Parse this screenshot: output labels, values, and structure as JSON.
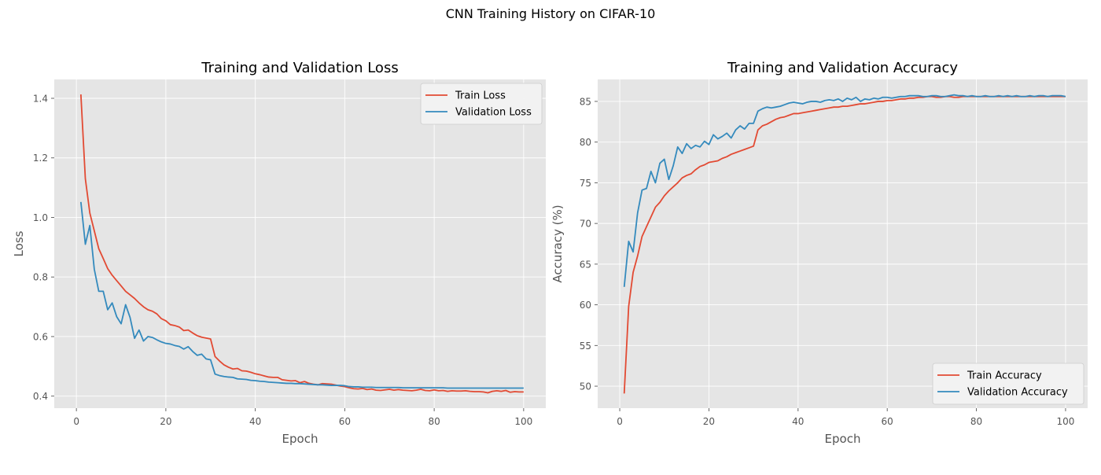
{
  "suptitle": "CNN Training History on CIFAR-10",
  "colors": {
    "train": "#E24A33",
    "validation": "#348ABD",
    "plot_background": "#E5E5E5",
    "grid": "#FFFFFF",
    "tick_text": "#555555"
  },
  "chart_data": [
    {
      "type": "line",
      "title": "Training and Validation Loss",
      "xlabel": "Epoch",
      "ylabel": "Loss",
      "xlim": [
        -4.95,
        104.95
      ],
      "ylim": [
        0.3596,
        1.4634
      ],
      "xticks": [
        0,
        20,
        40,
        60,
        80,
        100
      ],
      "yticks": [
        0.4,
        0.6,
        0.8,
        1.0,
        1.2,
        1.4
      ],
      "ytick_format": 1,
      "grid": true,
      "legend_position": "top-right",
      "series": [
        {
          "name": "Train Loss",
          "color_key": "train",
          "x": [
            1,
            2,
            3,
            4,
            5,
            6,
            7,
            8,
            9,
            10,
            11,
            12,
            13,
            14,
            15,
            16,
            17,
            18,
            19,
            20,
            21,
            22,
            23,
            24,
            25,
            26,
            27,
            28,
            29,
            30,
            31,
            32,
            33,
            34,
            35,
            36,
            37,
            38,
            39,
            40,
            41,
            42,
            43,
            44,
            45,
            46,
            47,
            48,
            49,
            50,
            51,
            52,
            53,
            54,
            55,
            56,
            57,
            58,
            59,
            60,
            61,
            62,
            63,
            64,
            65,
            66,
            67,
            68,
            69,
            70,
            71,
            72,
            73,
            74,
            75,
            76,
            77,
            78,
            79,
            80,
            81,
            82,
            83,
            84,
            85,
            86,
            87,
            88,
            89,
            90,
            91,
            92,
            93,
            94,
            95,
            96,
            97,
            98,
            99,
            100
          ],
          "values": [
            1.413,
            1.13,
            1.015,
            0.955,
            0.895,
            0.862,
            0.828,
            0.806,
            0.788,
            0.77,
            0.752,
            0.74,
            0.728,
            0.713,
            0.7,
            0.69,
            0.685,
            0.676,
            0.66,
            0.653,
            0.64,
            0.637,
            0.632,
            0.62,
            0.622,
            0.612,
            0.603,
            0.598,
            0.595,
            0.592,
            0.533,
            0.518,
            0.505,
            0.497,
            0.491,
            0.493,
            0.485,
            0.484,
            0.48,
            0.475,
            0.472,
            0.468,
            0.464,
            0.463,
            0.463,
            0.455,
            0.453,
            0.451,
            0.452,
            0.445,
            0.449,
            0.443,
            0.44,
            0.438,
            0.442,
            0.441,
            0.44,
            0.437,
            0.434,
            0.432,
            0.428,
            0.425,
            0.424,
            0.426,
            0.422,
            0.424,
            0.42,
            0.419,
            0.421,
            0.423,
            0.42,
            0.422,
            0.42,
            0.419,
            0.418,
            0.42,
            0.423,
            0.419,
            0.418,
            0.421,
            0.418,
            0.419,
            0.416,
            0.418,
            0.417,
            0.417,
            0.418,
            0.416,
            0.415,
            0.415,
            0.414,
            0.411,
            0.416,
            0.418,
            0.416,
            0.419,
            0.413,
            0.415,
            0.414,
            0.414
          ]
        },
        {
          "name": "Validation Loss",
          "color_key": "validation",
          "x": [
            1,
            2,
            3,
            4,
            5,
            6,
            7,
            8,
            9,
            10,
            11,
            12,
            13,
            14,
            15,
            16,
            17,
            18,
            19,
            20,
            21,
            22,
            23,
            24,
            25,
            26,
            27,
            28,
            29,
            30,
            31,
            32,
            33,
            34,
            35,
            36,
            37,
            38,
            39,
            40,
            41,
            42,
            43,
            44,
            45,
            46,
            47,
            48,
            49,
            50,
            51,
            52,
            53,
            54,
            55,
            56,
            57,
            58,
            59,
            60,
            61,
            62,
            63,
            64,
            65,
            66,
            67,
            68,
            69,
            70,
            71,
            72,
            73,
            74,
            75,
            76,
            77,
            78,
            79,
            80,
            81,
            82,
            83,
            84,
            85,
            86,
            87,
            88,
            89,
            90,
            91,
            92,
            93,
            94,
            95,
            96,
            97,
            98,
            99,
            100
          ],
          "values": [
            1.052,
            0.91,
            0.973,
            0.826,
            0.752,
            0.752,
            0.69,
            0.713,
            0.667,
            0.643,
            0.707,
            0.664,
            0.594,
            0.622,
            0.585,
            0.6,
            0.597,
            0.589,
            0.582,
            0.577,
            0.575,
            0.57,
            0.567,
            0.558,
            0.566,
            0.55,
            0.537,
            0.541,
            0.525,
            0.522,
            0.474,
            0.469,
            0.466,
            0.464,
            0.463,
            0.458,
            0.457,
            0.456,
            0.453,
            0.452,
            0.45,
            0.449,
            0.447,
            0.446,
            0.445,
            0.444,
            0.443,
            0.443,
            0.442,
            0.442,
            0.441,
            0.44,
            0.439,
            0.438,
            0.438,
            0.437,
            0.436,
            0.436,
            0.436,
            0.435,
            0.432,
            0.431,
            0.431,
            0.43,
            0.43,
            0.43,
            0.429,
            0.429,
            0.429,
            0.429,
            0.429,
            0.429,
            0.428,
            0.428,
            0.428,
            0.428,
            0.428,
            0.428,
            0.428,
            0.428,
            0.428,
            0.428,
            0.427,
            0.427,
            0.427,
            0.427,
            0.427,
            0.427,
            0.427,
            0.427,
            0.427,
            0.427,
            0.427,
            0.427,
            0.427,
            0.427,
            0.427,
            0.427,
            0.427,
            0.427
          ]
        }
      ]
    },
    {
      "type": "line",
      "title": "Training and Validation Accuracy",
      "xlabel": "Epoch",
      "ylabel": "Accuracy (%)",
      "xlim": [
        -4.95,
        104.95
      ],
      "ylim": [
        47.3,
        87.7
      ],
      "xticks": [
        0,
        20,
        40,
        60,
        80,
        100
      ],
      "yticks": [
        50,
        55,
        60,
        65,
        70,
        75,
        80,
        85
      ],
      "ytick_format": 0,
      "grid": true,
      "legend_position": "bottom-right",
      "series": [
        {
          "name": "Train Accuracy",
          "color_key": "train",
          "x": [
            1,
            2,
            3,
            4,
            5,
            6,
            7,
            8,
            9,
            10,
            11,
            12,
            13,
            14,
            15,
            16,
            17,
            18,
            19,
            20,
            21,
            22,
            23,
            24,
            25,
            26,
            27,
            28,
            29,
            30,
            31,
            32,
            33,
            34,
            35,
            36,
            37,
            38,
            39,
            40,
            41,
            42,
            43,
            44,
            45,
            46,
            47,
            48,
            49,
            50,
            51,
            52,
            53,
            54,
            55,
            56,
            57,
            58,
            59,
            60,
            61,
            62,
            63,
            64,
            65,
            66,
            67,
            68,
            69,
            70,
            71,
            72,
            73,
            74,
            75,
            76,
            77,
            78,
            79,
            80,
            81,
            82,
            83,
            84,
            85,
            86,
            87,
            88,
            89,
            90,
            91,
            92,
            93,
            94,
            95,
            96,
            97,
            98,
            99,
            100
          ],
          "values": [
            49.1,
            59.8,
            64.0,
            66.0,
            68.4,
            69.6,
            70.8,
            72.0,
            72.6,
            73.4,
            74.0,
            74.5,
            75.0,
            75.6,
            75.9,
            76.1,
            76.6,
            77.0,
            77.2,
            77.5,
            77.6,
            77.7,
            78.0,
            78.2,
            78.5,
            78.7,
            78.9,
            79.1,
            79.3,
            79.5,
            81.5,
            82.0,
            82.2,
            82.5,
            82.8,
            83.0,
            83.1,
            83.3,
            83.5,
            83.5,
            83.6,
            83.7,
            83.8,
            83.9,
            84.0,
            84.1,
            84.2,
            84.3,
            84.3,
            84.4,
            84.4,
            84.5,
            84.6,
            84.7,
            84.7,
            84.8,
            84.9,
            85.0,
            85.0,
            85.1,
            85.1,
            85.2,
            85.3,
            85.3,
            85.4,
            85.4,
            85.5,
            85.5,
            85.6,
            85.6,
            85.5,
            85.5,
            85.6,
            85.6,
            85.5,
            85.5,
            85.6,
            85.6,
            85.6,
            85.6,
            85.6,
            85.6,
            85.6,
            85.6,
            85.6,
            85.6,
            85.6,
            85.6,
            85.6,
            85.6,
            85.6,
            85.6,
            85.6,
            85.6,
            85.6,
            85.6,
            85.6,
            85.6,
            85.6,
            85.6
          ]
        },
        {
          "name": "Validation Accuracy",
          "color_key": "validation",
          "x": [
            1,
            2,
            3,
            4,
            5,
            6,
            7,
            8,
            9,
            10,
            11,
            12,
            13,
            14,
            15,
            16,
            17,
            18,
            19,
            20,
            21,
            22,
            23,
            24,
            25,
            26,
            27,
            28,
            29,
            30,
            31,
            32,
            33,
            34,
            35,
            36,
            37,
            38,
            39,
            40,
            41,
            42,
            43,
            44,
            45,
            46,
            47,
            48,
            49,
            50,
            51,
            52,
            53,
            54,
            55,
            56,
            57,
            58,
            59,
            60,
            61,
            62,
            63,
            64,
            65,
            66,
            67,
            68,
            69,
            70,
            71,
            72,
            73,
            74,
            75,
            76,
            77,
            78,
            79,
            80,
            81,
            82,
            83,
            84,
            85,
            86,
            87,
            88,
            89,
            90,
            91,
            92,
            93,
            94,
            95,
            96,
            97,
            98,
            99,
            100
          ],
          "values": [
            62.2,
            67.8,
            66.5,
            71.3,
            74.1,
            74.3,
            76.4,
            75.0,
            77.4,
            77.9,
            75.4,
            77.1,
            79.4,
            78.6,
            79.8,
            79.2,
            79.6,
            79.4,
            80.1,
            79.7,
            80.9,
            80.4,
            80.7,
            81.1,
            80.5,
            81.5,
            82.0,
            81.6,
            82.3,
            82.3,
            83.8,
            84.1,
            84.3,
            84.2,
            84.3,
            84.4,
            84.6,
            84.8,
            84.9,
            84.8,
            84.7,
            84.9,
            85.0,
            85.0,
            84.9,
            85.1,
            85.2,
            85.1,
            85.3,
            85.0,
            85.4,
            85.2,
            85.5,
            85.0,
            85.3,
            85.2,
            85.4,
            85.3,
            85.5,
            85.5,
            85.4,
            85.5,
            85.6,
            85.6,
            85.7,
            85.7,
            85.7,
            85.6,
            85.6,
            85.7,
            85.7,
            85.6,
            85.6,
            85.7,
            85.8,
            85.7,
            85.7,
            85.6,
            85.7,
            85.6,
            85.6,
            85.7,
            85.6,
            85.6,
            85.7,
            85.6,
            85.7,
            85.6,
            85.7,
            85.6,
            85.6,
            85.7,
            85.6,
            85.7,
            85.7,
            85.6,
            85.7,
            85.7,
            85.7,
            85.6
          ]
        }
      ]
    }
  ]
}
